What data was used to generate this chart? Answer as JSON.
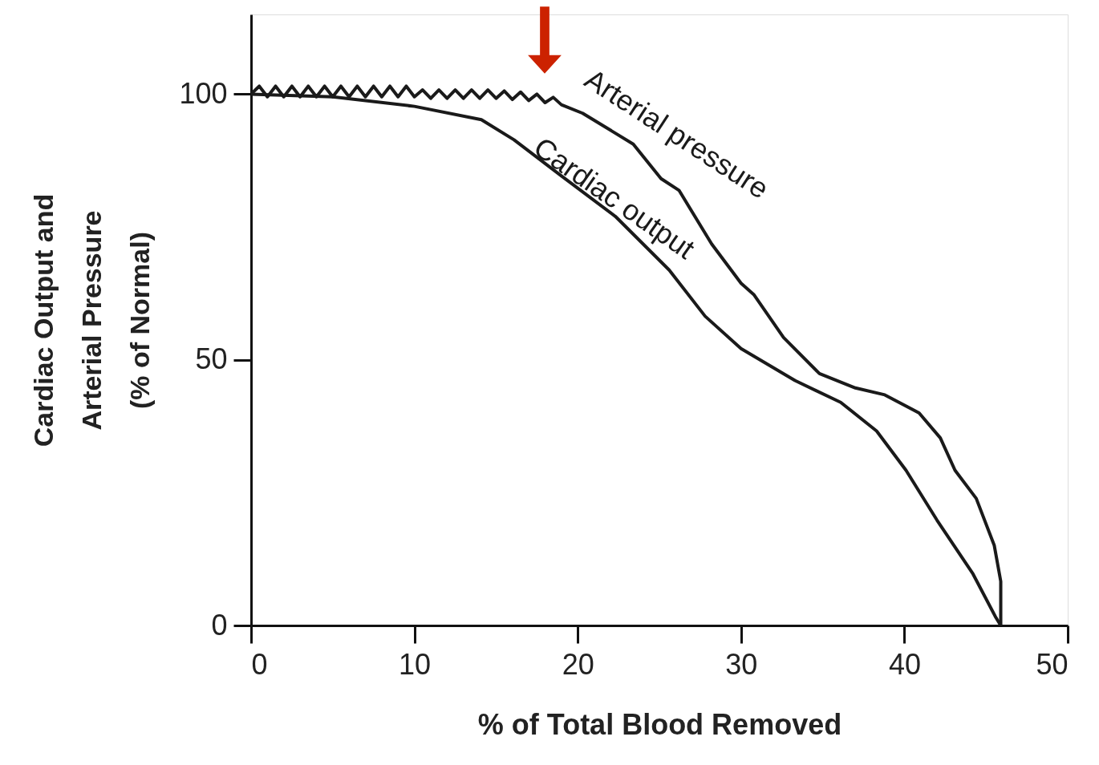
{
  "chart_data": {
    "type": "line",
    "xlabel": "% of Total Blood Removed",
    "ylabel": "Cardiac Output and\nArterial Pressure\n(% of Normal)",
    "xlim": [
      0,
      50
    ],
    "xticks": [
      0,
      10,
      20,
      30,
      40,
      50
    ],
    "ylim": [
      0,
      115
    ],
    "yticks": [
      0,
      50,
      100
    ],
    "grid": false,
    "marker": "none",
    "line_style": "solid",
    "series": [
      {
        "name": "Arterial pressure",
        "color": "#1a1a1a",
        "x": [
          0,
          0.5,
          1,
          1.5,
          2,
          2.5,
          3,
          3.5,
          4,
          4.5,
          5,
          5.5,
          6,
          6.5,
          7,
          7.5,
          8,
          8.5,
          9,
          9.5,
          10,
          10.5,
          11,
          11.5,
          12,
          12.5,
          13,
          13.5,
          14,
          14.5,
          15,
          15.5,
          16,
          16.5,
          17,
          17.5,
          18,
          18.5,
          19,
          20.3,
          23.4,
          25.1,
          26.2,
          28.2,
          30.0,
          30.8,
          32.6,
          34.8,
          37.0,
          38.8,
          40.9,
          42.2,
          43.1,
          44.4,
          45.5,
          45.9,
          45.9
        ],
        "values": [
          100,
          101.5,
          99.5,
          101.5,
          99.5,
          101.5,
          99.5,
          101.5,
          99.5,
          101.5,
          99.5,
          101.5,
          99.5,
          101.5,
          99.5,
          101.5,
          99.5,
          101.5,
          99.5,
          101.5,
          99.5,
          100.8,
          99.2,
          100.8,
          99.2,
          100.8,
          99.2,
          100.8,
          99.2,
          100.8,
          99.2,
          100.6,
          99.0,
          100.4,
          98.8,
          100.0,
          98.4,
          99.4,
          98.0,
          96.4,
          90.6,
          84.1,
          81.9,
          71.8,
          64.4,
          62.2,
          54.2,
          47.4,
          44.7,
          43.4,
          40.0,
          35.3,
          29.2,
          23.9,
          15.1,
          8.3,
          0
        ]
      },
      {
        "name": "Cardiac output",
        "color": "#1a1a1a",
        "x": [
          0,
          5,
          10,
          14.1,
          16.1,
          19,
          22.3,
          25.6,
          27.8,
          30,
          33.3,
          36.1,
          38.3,
          40.1,
          42,
          44.2,
          45.6,
          45.9
        ],
        "values": [
          100,
          99.5,
          97.7,
          95.2,
          91.4,
          84.6,
          77,
          66.9,
          58.2,
          52.1,
          46.1,
          42,
          36.6,
          29.2,
          19.8,
          9.7,
          1.5,
          0
        ]
      }
    ]
  }
}
